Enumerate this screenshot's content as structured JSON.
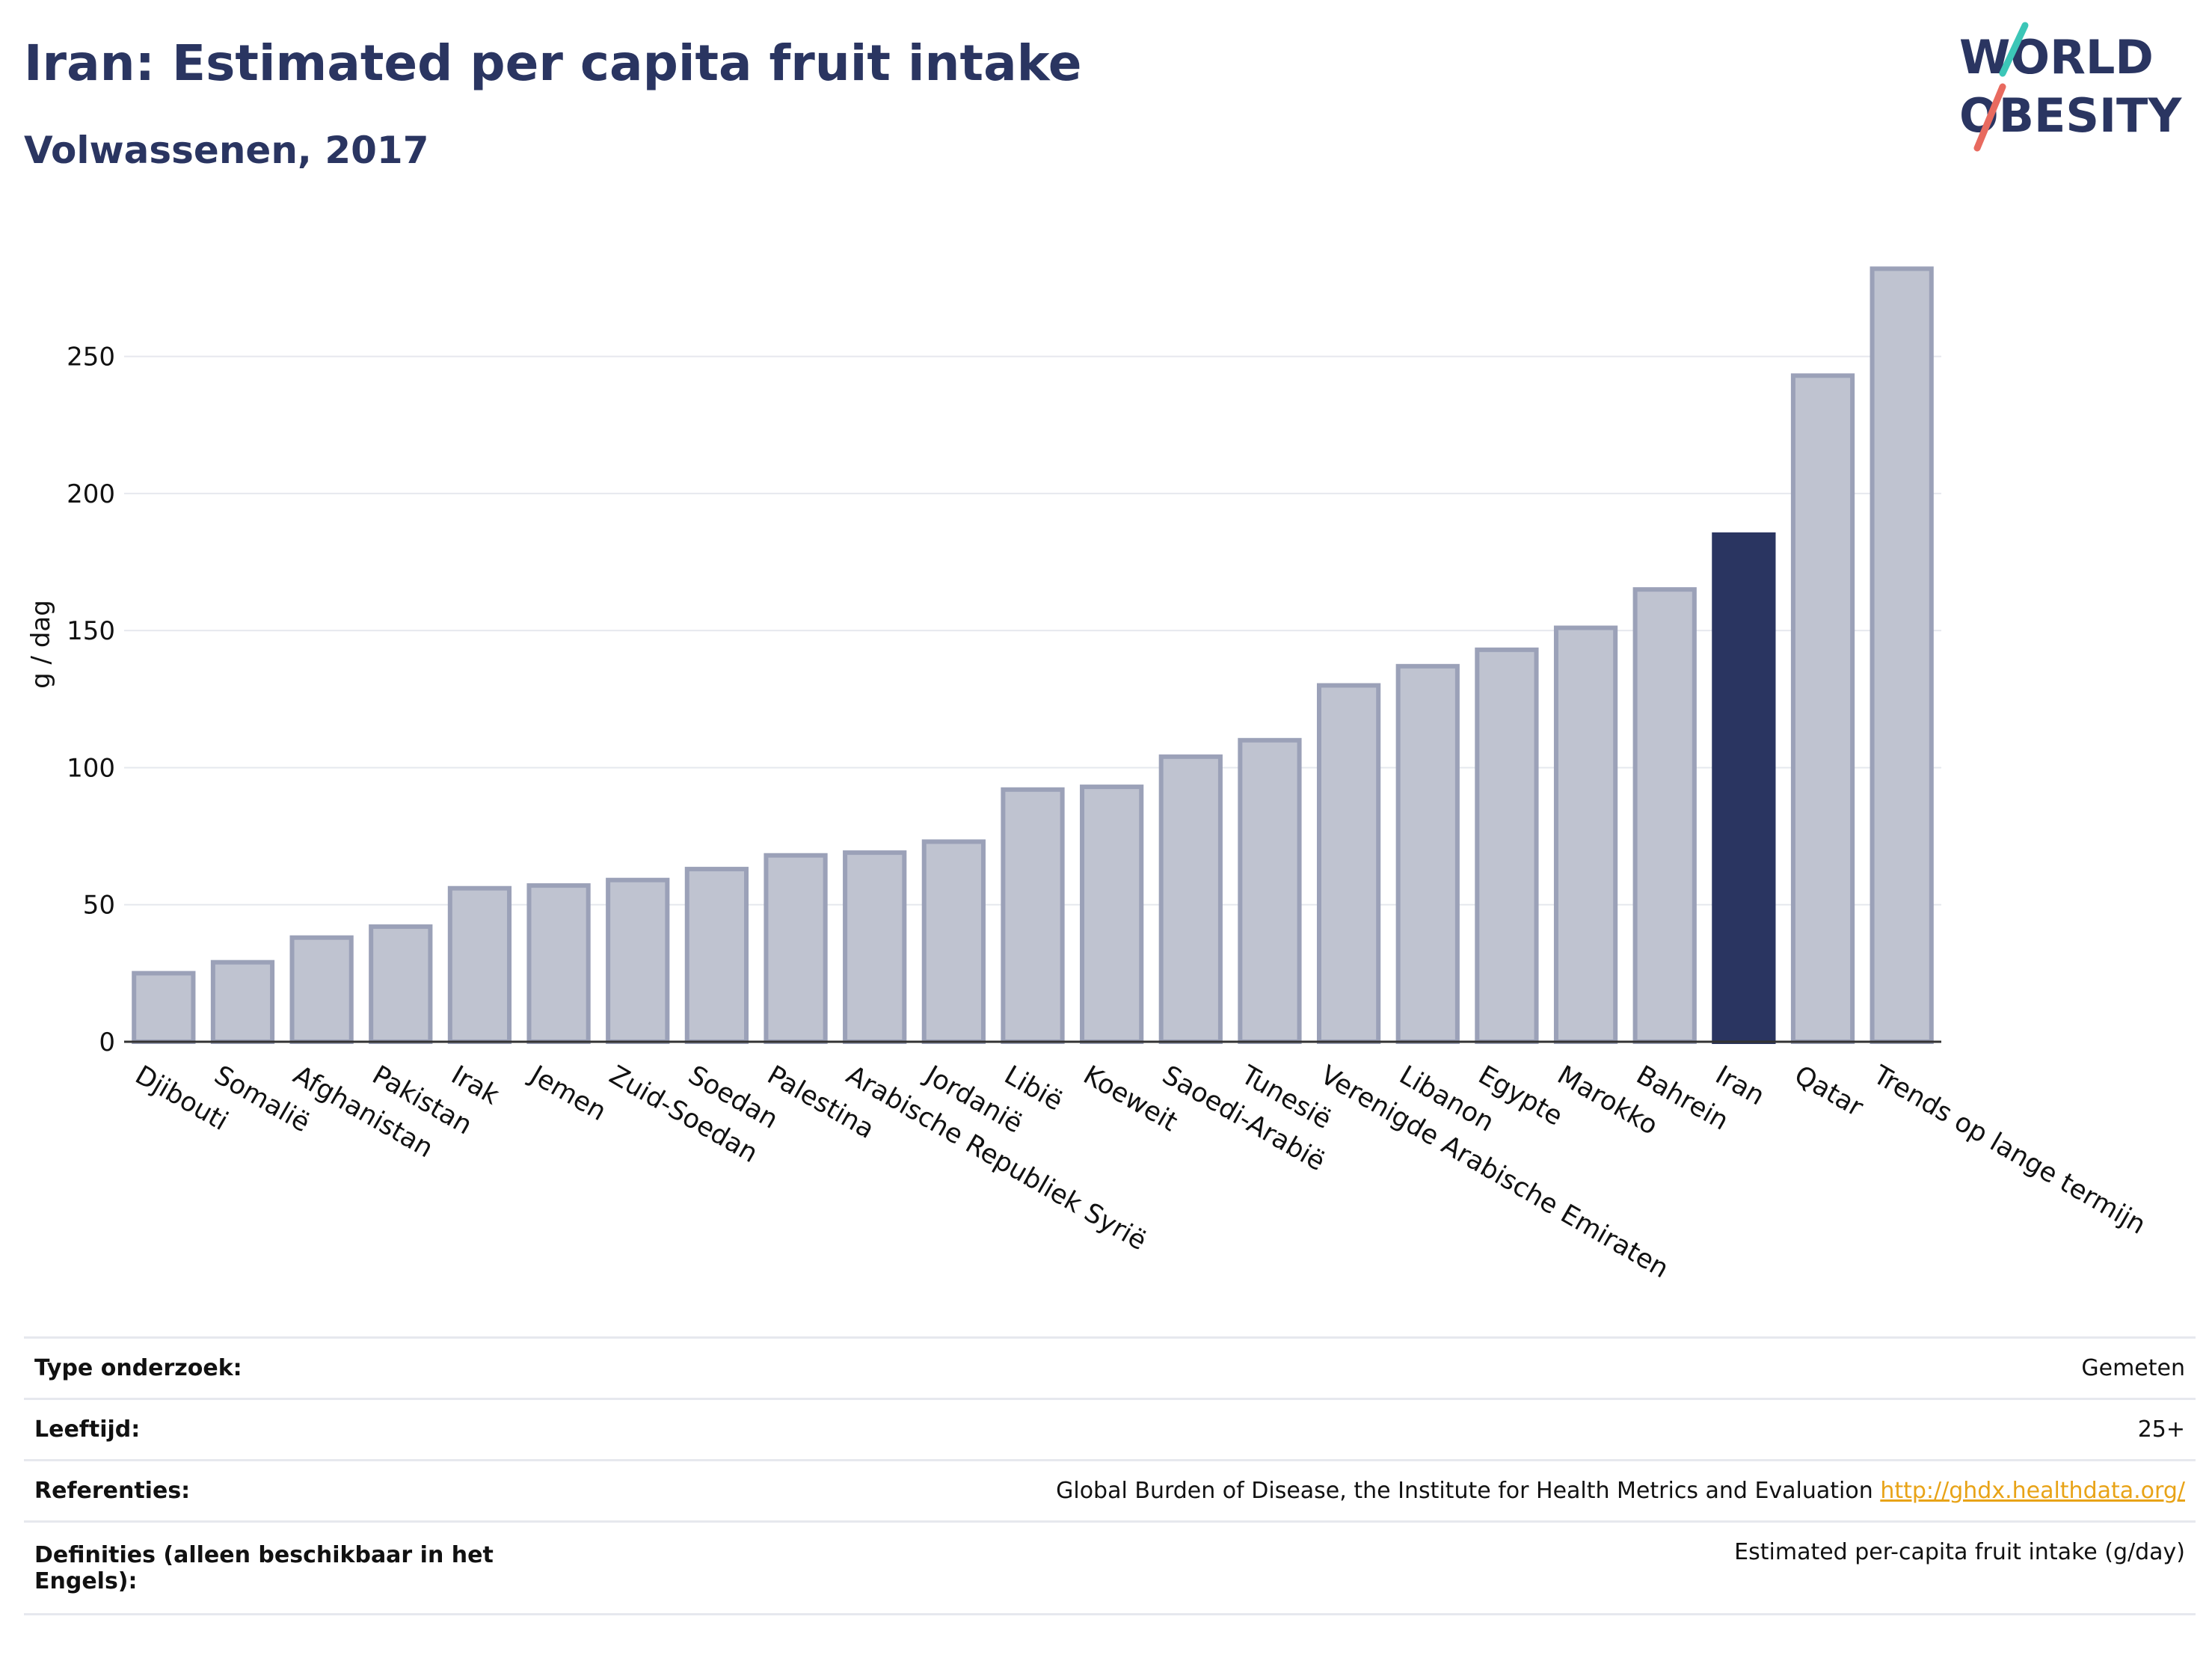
{
  "header": {
    "title": "Iran: Estimated per capita fruit intake",
    "subtitle": "Volwassenen, 2017"
  },
  "logo": {
    "line1": "WORLD",
    "line2": "OBESITY"
  },
  "colors": {
    "bar_fill": "#bfc3d0",
    "bar_stroke": "#9ba1b8",
    "highlight": "#2a3561",
    "text": "#2a3561",
    "grid": "#e6e8ee",
    "logo_teal": "#3cc6b7",
    "logo_coral": "#e86a5f",
    "link": "#e8a317"
  },
  "chart_data": {
    "type": "bar",
    "ylabel": "g / dag",
    "ylim": [
      0,
      290
    ],
    "yticks": [
      0,
      50,
      100,
      150,
      200,
      250
    ],
    "grid": true,
    "highlight": "Iran",
    "categories": [
      "Djibouti",
      "Somalië",
      "Afghanistan",
      "Pakistan",
      "Irak",
      "Jemen",
      "Zuid-Soedan",
      "Soedan",
      "Palestina",
      "Arabische Republiek Syrië",
      "Jordanië",
      "Libië",
      "Koeweit",
      "Saoedi-Arabië",
      "Tunesië",
      "Verenigde Arabische Emiraten",
      "Libanon",
      "Egypte",
      "Marokko",
      "Bahrein",
      "Iran",
      "Qatar",
      "Trends op lange termijn"
    ],
    "values": [
      25,
      29,
      38,
      42,
      56,
      57,
      59,
      63,
      68,
      69,
      73,
      92,
      93,
      104,
      110,
      130,
      137,
      143,
      151,
      165,
      185,
      243,
      282
    ]
  },
  "info": [
    {
      "label": "Type onderzoek:",
      "value": "Gemeten"
    },
    {
      "label": "Leeftijd:",
      "value": "25+"
    },
    {
      "label": "Referenties:",
      "value": "Global Burden of Disease, the Institute for Health Metrics and Evaluation",
      "link": "http://ghdx.healthdata.org/"
    },
    {
      "label": "Definities (alleen beschikbaar in het Engels):",
      "value": "Estimated per-capita fruit intake (g/day)"
    }
  ]
}
